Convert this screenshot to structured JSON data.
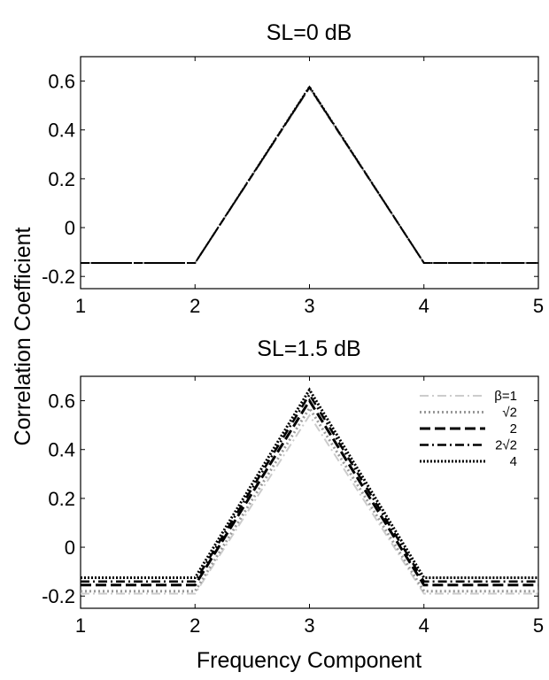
{
  "figure": {
    "ylabel": "Correlation Coefficient",
    "xlabel": "Frequency Component"
  },
  "chart_data": [
    {
      "type": "line",
      "title": "SL=0 dB",
      "xlim": [
        1,
        5
      ],
      "ylim": [
        -0.25,
        0.7
      ],
      "xticks": [
        1,
        2,
        3,
        4,
        5
      ],
      "yticks": [
        -0.2,
        0,
        0.2,
        0.4,
        0.6
      ],
      "ytick_labels": [
        "-0.2",
        "0",
        "0.2",
        "0.4",
        "0.6"
      ],
      "grid": false,
      "legend": null,
      "series": [
        {
          "x": [
            1,
            2,
            3,
            4,
            5
          ],
          "y": [
            -0.145,
            -0.145,
            0.57,
            -0.145,
            -0.145
          ],
          "color": "#cccccc",
          "dash": "10 4 2 4",
          "width": 2
        },
        {
          "x": [
            1,
            2,
            3,
            4,
            5
          ],
          "y": [
            -0.145,
            -0.145,
            0.572,
            -0.145,
            -0.145
          ],
          "color": "#999999",
          "dash": "2 3",
          "width": 2
        },
        {
          "x": [
            1,
            2,
            3,
            4,
            5
          ],
          "y": [
            -0.145,
            -0.145,
            0.574,
            -0.145,
            -0.145
          ],
          "color": "#000000",
          "dash": "10 5",
          "width": 2
        },
        {
          "x": [
            1,
            2,
            3,
            4,
            5
          ],
          "y": [
            -0.145,
            -0.145,
            0.576,
            -0.145,
            -0.145
          ],
          "color": "#000000",
          "dash": "10 4 2 4",
          "width": 2
        },
        {
          "x": [
            1,
            2,
            3,
            4,
            5
          ],
          "y": [
            -0.145,
            -0.145,
            0.578,
            -0.145,
            -0.145
          ],
          "color": "#000000",
          "dash": "2 2",
          "width": 2
        }
      ]
    },
    {
      "type": "line",
      "title": "SL=1.5 dB",
      "xlim": [
        1,
        5
      ],
      "ylim": [
        -0.25,
        0.7
      ],
      "xticks": [
        1,
        2,
        3,
        4,
        5
      ],
      "yticks": [
        -0.2,
        0,
        0.2,
        0.4,
        0.6
      ],
      "ytick_labels": [
        "-0.2",
        "0",
        "0.2",
        "0.4",
        "0.6"
      ],
      "grid": false,
      "legend": "top-right",
      "series": [
        {
          "name": "β=1",
          "x": [
            1,
            2,
            3,
            4,
            5
          ],
          "y": [
            -0.19,
            -0.19,
            0.54,
            -0.19,
            -0.19
          ],
          "color": "#cccccc",
          "dash": "10 4 2 4",
          "width": 2
        },
        {
          "name": "√2",
          "x": [
            1,
            2,
            3,
            4,
            5
          ],
          "y": [
            -0.18,
            -0.18,
            0.57,
            -0.18,
            -0.18
          ],
          "color": "#999999",
          "dash": "2 3",
          "width": 3
        },
        {
          "name": "2",
          "x": [
            1,
            2,
            3,
            4,
            5
          ],
          "y": [
            -0.155,
            -0.155,
            0.6,
            -0.155,
            -0.155
          ],
          "color": "#000000",
          "dash": "12 5",
          "width": 3
        },
        {
          "name": "2√2",
          "x": [
            1,
            2,
            3,
            4,
            5
          ],
          "y": [
            -0.14,
            -0.14,
            0.625,
            -0.14,
            -0.14
          ],
          "color": "#000000",
          "dash": "10 4 2 4",
          "width": 2.5
        },
        {
          "name": "4",
          "x": [
            1,
            2,
            3,
            4,
            5
          ],
          "y": [
            -0.125,
            -0.125,
            0.645,
            -0.125,
            -0.125
          ],
          "color": "#000000",
          "dash": "2 2",
          "width": 3
        }
      ]
    }
  ]
}
